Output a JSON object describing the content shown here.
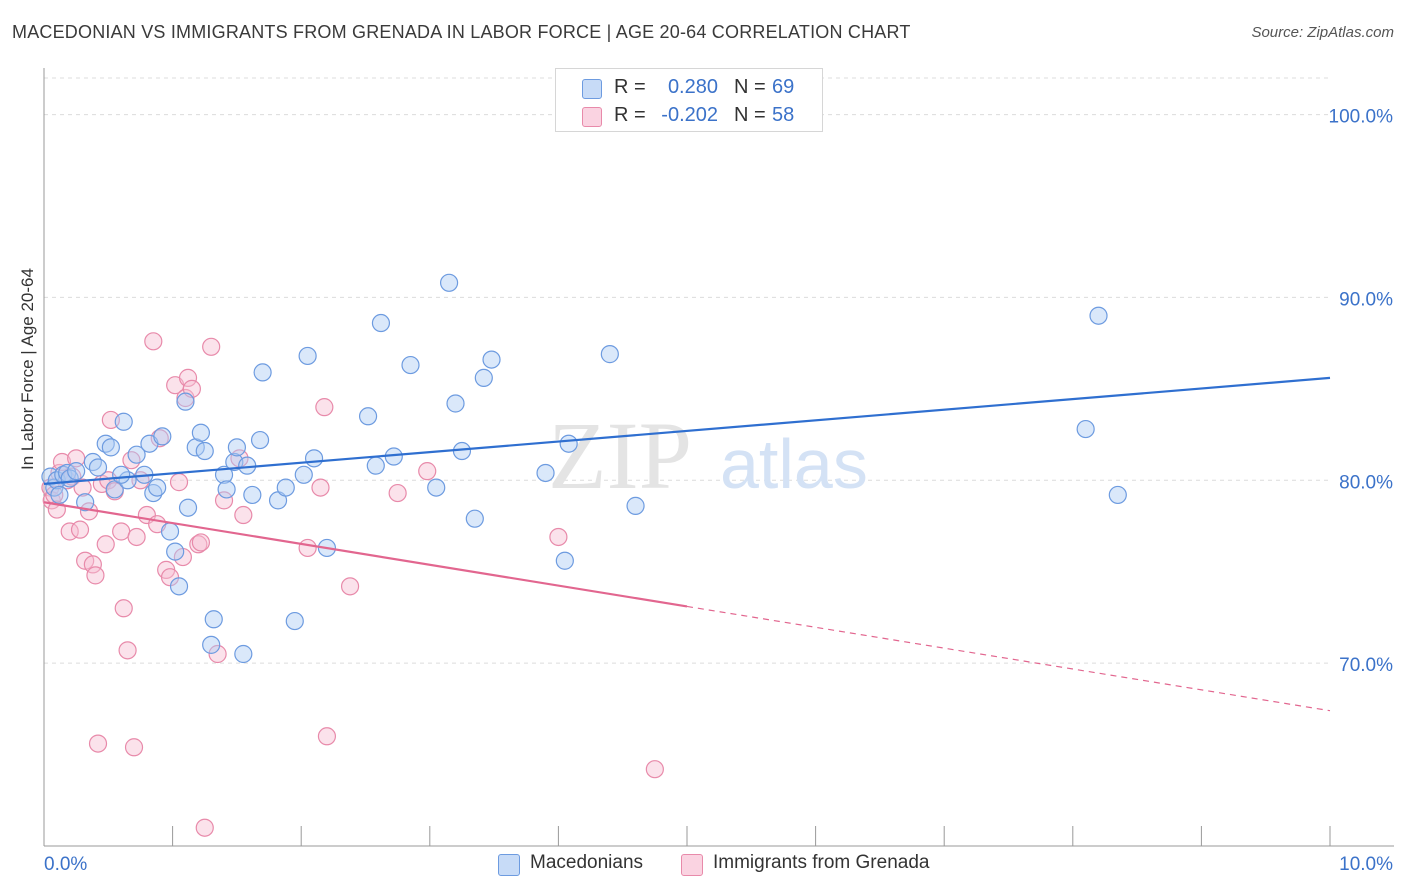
{
  "title": "MACEDONIAN VS IMMIGRANTS FROM GRENADA IN LABOR FORCE | AGE 20-64 CORRELATION CHART",
  "source": "Source: ZipAtlas.com",
  "watermark": {
    "zip": "ZIP",
    "atlas": "atlas"
  },
  "legend": {
    "rows": [
      {
        "r_label": "R =",
        "r_value": "0.280",
        "n_label": "N =",
        "n_value": "69",
        "color": "#aecbf4"
      },
      {
        "r_label": "R =",
        "r_value": "-0.202",
        "n_label": "N =",
        "n_value": "58",
        "color": "#f7bfd3"
      }
    ]
  },
  "bottom_legend": {
    "macedonians": "Macedonians",
    "grenada": "Immigrants from Grenada"
  },
  "colors": {
    "blue_fill": "#aecbf4",
    "blue_stroke": "#6d9be0",
    "blue_line": "#2f6fd0",
    "pink_fill": "#f7bfd3",
    "pink_stroke": "#e88aaa",
    "pink_line": "#e2668f",
    "axis_text": "#3b72c9",
    "grid": "#dcdcdc"
  },
  "chart_data": {
    "type": "scatter",
    "title": "MACEDONIAN VS IMMIGRANTS FROM GRENADA IN LABOR FORCE | AGE 20-64 CORRELATION CHART",
    "xlabel": "",
    "ylabel": "In Labor Force | Age 20-64",
    "xlim": [
      0,
      10
    ],
    "ylim": [
      60,
      102
    ],
    "x_tick_labels": [
      "0.0%",
      "10.0%"
    ],
    "y_ticks": [
      70,
      80,
      90,
      100
    ],
    "y_tick_labels": [
      "70.0%",
      "80.0%",
      "90.0%",
      "100.0%"
    ],
    "grid": true,
    "legend_position": "top-center",
    "series": [
      {
        "name": "Macedonians",
        "r": 0.28,
        "n": 69,
        "trend": {
          "x": [
            0,
            10
          ],
          "y": [
            79.8,
            85.6
          ],
          "dashed_from": null
        },
        "points": [
          [
            0.05,
            80.2
          ],
          [
            0.08,
            79.6
          ],
          [
            0.1,
            80.0
          ],
          [
            0.12,
            79.2
          ],
          [
            0.15,
            80.3
          ],
          [
            0.18,
            80.4
          ],
          [
            0.2,
            80.1
          ],
          [
            0.25,
            80.5
          ],
          [
            0.32,
            78.8
          ],
          [
            0.38,
            81.0
          ],
          [
            0.42,
            80.7
          ],
          [
            0.48,
            82.0
          ],
          [
            0.52,
            81.8
          ],
          [
            0.55,
            79.5
          ],
          [
            0.62,
            83.2
          ],
          [
            0.65,
            80.0
          ],
          [
            0.72,
            81.4
          ],
          [
            0.78,
            80.3
          ],
          [
            0.82,
            82.0
          ],
          [
            0.85,
            79.3
          ],
          [
            0.88,
            79.6
          ],
          [
            0.92,
            82.4
          ],
          [
            0.98,
            77.2
          ],
          [
            1.02,
            76.1
          ],
          [
            1.05,
            74.2
          ],
          [
            1.1,
            84.3
          ],
          [
            1.12,
            78.5
          ],
          [
            1.18,
            81.8
          ],
          [
            1.22,
            82.6
          ],
          [
            1.25,
            81.6
          ],
          [
            1.3,
            71.0
          ],
          [
            1.32,
            72.4
          ],
          [
            1.4,
            80.3
          ],
          [
            1.42,
            79.5
          ],
          [
            1.48,
            81.0
          ],
          [
            1.5,
            81.8
          ],
          [
            1.55,
            70.5
          ],
          [
            1.58,
            80.8
          ],
          [
            1.62,
            79.2
          ],
          [
            1.68,
            82.2
          ],
          [
            1.7,
            85.9
          ],
          [
            1.82,
            78.9
          ],
          [
            1.88,
            79.6
          ],
          [
            1.95,
            72.3
          ],
          [
            2.02,
            80.3
          ],
          [
            2.05,
            86.8
          ],
          [
            2.1,
            81.2
          ],
          [
            2.2,
            76.3
          ],
          [
            2.52,
            83.5
          ],
          [
            2.58,
            80.8
          ],
          [
            2.62,
            88.6
          ],
          [
            2.72,
            81.3
          ],
          [
            2.85,
            86.3
          ],
          [
            3.05,
            79.6
          ],
          [
            3.15,
            90.8
          ],
          [
            3.2,
            84.2
          ],
          [
            3.25,
            81.6
          ],
          [
            3.35,
            77.9
          ],
          [
            3.42,
            85.6
          ],
          [
            3.48,
            86.6
          ],
          [
            3.9,
            80.4
          ],
          [
            4.05,
            75.6
          ],
          [
            4.08,
            82.0
          ],
          [
            4.4,
            86.9
          ],
          [
            4.6,
            78.6
          ],
          [
            8.1,
            82.8
          ],
          [
            8.2,
            89.0
          ],
          [
            8.35,
            79.2
          ],
          [
            0.6,
            80.3
          ]
        ]
      },
      {
        "name": "Immigrants from Grenada",
        "r": -0.202,
        "n": 58,
        "trend": {
          "x": [
            0,
            10
          ],
          "y": [
            78.8,
            67.4
          ],
          "dashed_from": 5.0
        },
        "points": [
          [
            0.05,
            79.6
          ],
          [
            0.06,
            78.9
          ],
          [
            0.08,
            79.2
          ],
          [
            0.1,
            78.4
          ],
          [
            0.12,
            80.4
          ],
          [
            0.14,
            81.0
          ],
          [
            0.18,
            80.0
          ],
          [
            0.2,
            77.2
          ],
          [
            0.22,
            80.2
          ],
          [
            0.25,
            81.2
          ],
          [
            0.28,
            77.3
          ],
          [
            0.3,
            79.6
          ],
          [
            0.32,
            75.6
          ],
          [
            0.35,
            78.3
          ],
          [
            0.38,
            75.4
          ],
          [
            0.4,
            74.8
          ],
          [
            0.42,
            65.6
          ],
          [
            0.45,
            79.8
          ],
          [
            0.48,
            76.5
          ],
          [
            0.5,
            80.0
          ],
          [
            0.52,
            83.3
          ],
          [
            0.55,
            79.4
          ],
          [
            0.6,
            77.2
          ],
          [
            0.62,
            73.0
          ],
          [
            0.65,
            70.7
          ],
          [
            0.68,
            81.1
          ],
          [
            0.7,
            65.4
          ],
          [
            0.72,
            76.9
          ],
          [
            0.75,
            80.0
          ],
          [
            0.8,
            78.1
          ],
          [
            0.85,
            87.6
          ],
          [
            0.88,
            77.6
          ],
          [
            0.9,
            82.3
          ],
          [
            0.95,
            75.1
          ],
          [
            0.98,
            74.7
          ],
          [
            1.02,
            85.2
          ],
          [
            1.05,
            79.9
          ],
          [
            1.08,
            75.8
          ],
          [
            1.1,
            84.5
          ],
          [
            1.12,
            85.6
          ],
          [
            1.15,
            85.0
          ],
          [
            1.2,
            76.5
          ],
          [
            1.22,
            76.6
          ],
          [
            1.25,
            61.0
          ],
          [
            1.3,
            87.3
          ],
          [
            1.35,
            70.5
          ],
          [
            1.4,
            78.9
          ],
          [
            1.52,
            81.2
          ],
          [
            1.55,
            78.1
          ],
          [
            2.05,
            76.3
          ],
          [
            2.15,
            79.6
          ],
          [
            2.18,
            84.0
          ],
          [
            2.2,
            66.0
          ],
          [
            2.38,
            74.2
          ],
          [
            2.75,
            79.3
          ],
          [
            2.98,
            80.5
          ],
          [
            4.0,
            76.9
          ],
          [
            4.75,
            64.2
          ]
        ]
      }
    ]
  }
}
